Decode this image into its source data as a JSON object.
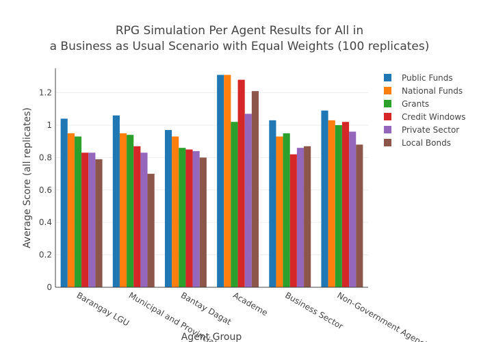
{
  "chart_data": {
    "type": "bar",
    "title_lines": [
      "RPG Simulation Per Agent Results for All in",
      "a Business as Usual Scenario with Equal Weights (100 replicates)"
    ],
    "xlabel": "Agent Group",
    "ylabel": "Average Score (all replicates)",
    "ylim": [
      0,
      1.35
    ],
    "yticks": [
      "0",
      "0.2",
      "0.4",
      "0.6",
      "0.8",
      "1",
      "1.2"
    ],
    "categories": [
      "Barangay LGU",
      "Municipal and Provincial LGU",
      "Bantay Dagat",
      "Academe",
      "Business Sector",
      "Non-Government Agencies"
    ],
    "series": [
      {
        "name": "Public Funds",
        "color": "#1f77b4",
        "values": [
          1.04,
          1.06,
          0.97,
          1.31,
          1.03,
          1.09
        ]
      },
      {
        "name": "National Funds",
        "color": "#ff7f0e",
        "values": [
          0.95,
          0.95,
          0.93,
          1.31,
          0.93,
          1.03
        ]
      },
      {
        "name": "Grants",
        "color": "#2ca02c",
        "values": [
          0.93,
          0.94,
          0.86,
          1.02,
          0.95,
          1.0
        ]
      },
      {
        "name": "Credit Windows",
        "color": "#d62728",
        "values": [
          0.83,
          0.87,
          0.85,
          1.28,
          0.82,
          1.02
        ]
      },
      {
        "name": "Private Sector",
        "color": "#9467bd",
        "values": [
          0.83,
          0.83,
          0.84,
          1.07,
          0.86,
          0.96
        ]
      },
      {
        "name": "Local Bonds",
        "color": "#8c564b",
        "values": [
          0.79,
          0.7,
          0.8,
          1.21,
          0.87,
          0.88
        ]
      }
    ],
    "grid": true,
    "legend_position": "right"
  }
}
